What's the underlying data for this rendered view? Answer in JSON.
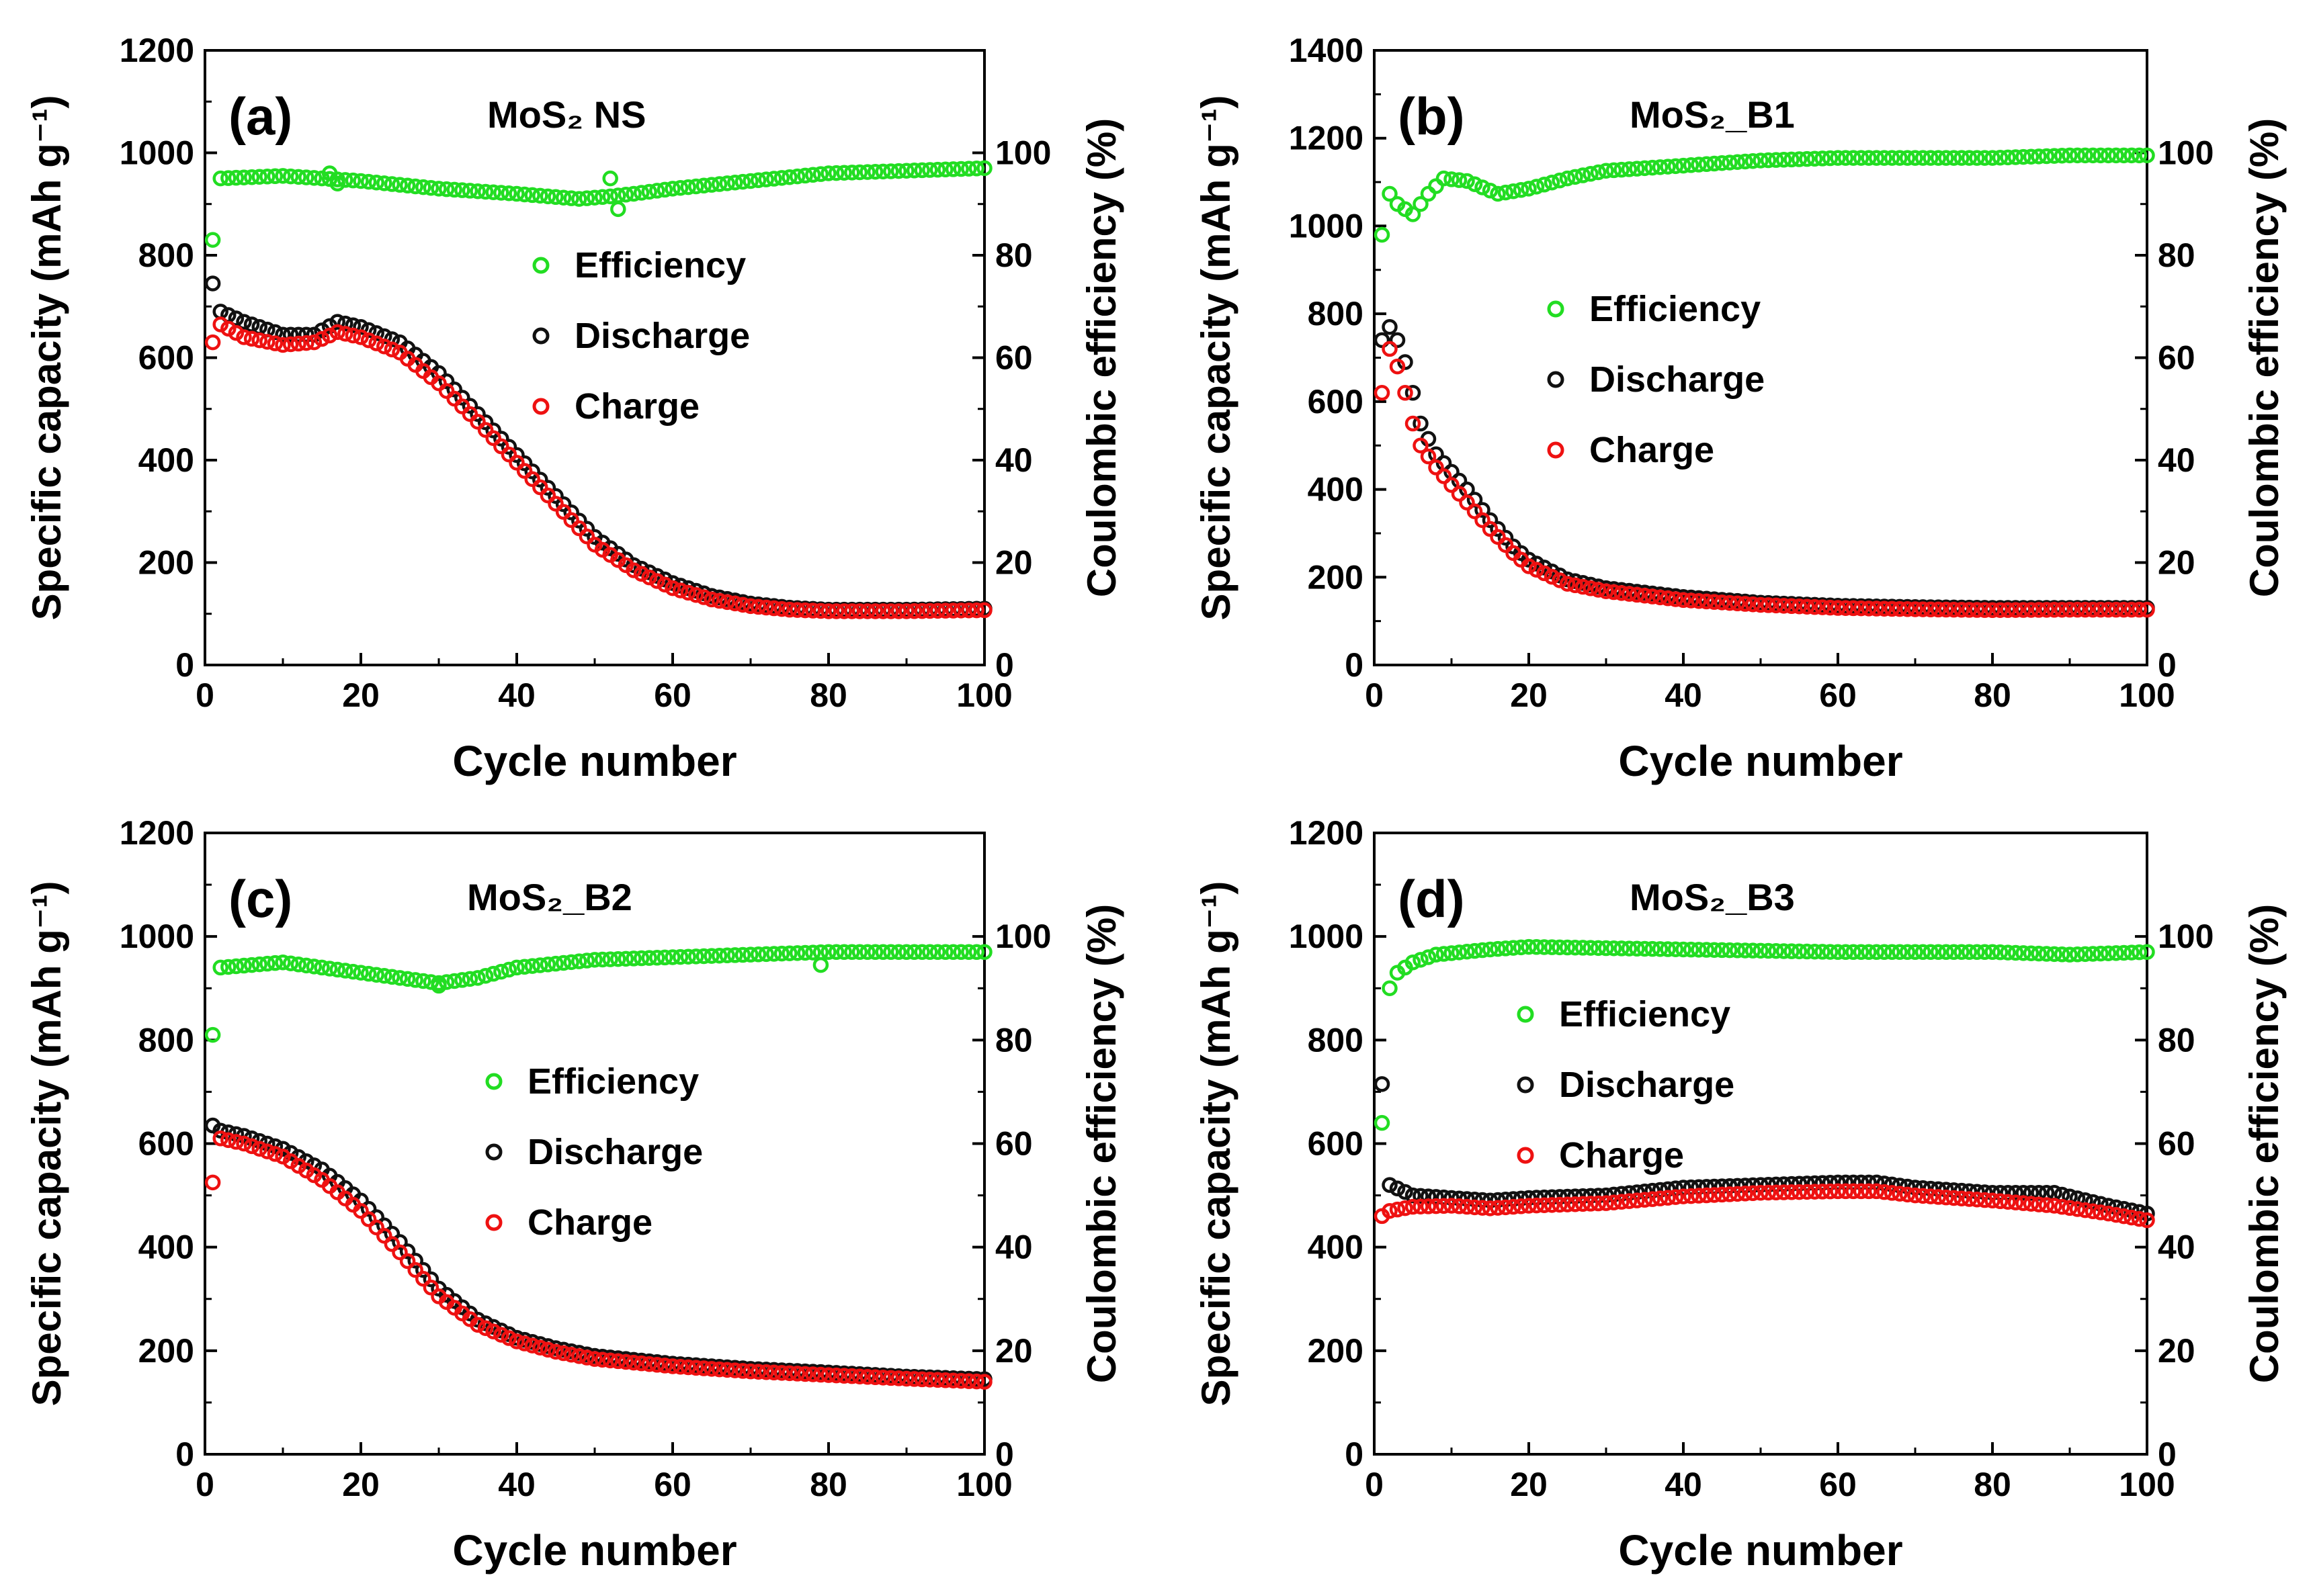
{
  "chart_data": [
    {
      "type": "scatter",
      "panel_label": "(a)",
      "title": "MoS₂ NS",
      "xlabel": "Cycle number",
      "ylabel_left": "Specific capacity (mAh g⁻¹)",
      "ylabel_right": "Coulombic efficiency (%)",
      "xlim": [
        0,
        100
      ],
      "ylim_left": [
        0,
        1200
      ],
      "ylim_right": [
        0,
        120
      ],
      "xticks": [
        "0",
        "20",
        "40",
        "60",
        "80",
        "100"
      ],
      "yticks_left": [
        "0",
        "200",
        "400",
        "600",
        "800",
        "1000",
        "1200"
      ],
      "yticks_right": [
        "0",
        "20",
        "40",
        "60",
        "80",
        "100"
      ],
      "legend": [
        "Efficiency",
        "Discharge",
        "Charge"
      ],
      "colors": {
        "efficiency": "#22dd22",
        "discharge": "#111111",
        "charge": "#ee1111"
      },
      "discharge_key": [
        [
          1,
          745
        ],
        [
          2,
          690
        ],
        [
          5,
          670
        ],
        [
          10,
          645
        ],
        [
          14,
          645
        ],
        [
          17,
          670
        ],
        [
          20,
          660
        ],
        [
          25,
          630
        ],
        [
          30,
          570
        ],
        [
          35,
          490
        ],
        [
          40,
          410
        ],
        [
          45,
          330
        ],
        [
          50,
          250
        ],
        [
          55,
          195
        ],
        [
          60,
          160
        ],
        [
          65,
          135
        ],
        [
          70,
          120
        ],
        [
          75,
          112
        ],
        [
          80,
          108
        ],
        [
          90,
          108
        ],
        [
          100,
          110
        ]
      ],
      "charge_key": [
        [
          1,
          630
        ],
        [
          2,
          665
        ],
        [
          5,
          640
        ],
        [
          10,
          625
        ],
        [
          14,
          630
        ],
        [
          17,
          650
        ],
        [
          20,
          640
        ],
        [
          25,
          610
        ],
        [
          30,
          550
        ],
        [
          35,
          475
        ],
        [
          40,
          395
        ],
        [
          45,
          315
        ],
        [
          50,
          235
        ],
        [
          55,
          185
        ],
        [
          60,
          150
        ],
        [
          65,
          128
        ],
        [
          70,
          115
        ],
        [
          75,
          108
        ],
        [
          80,
          105
        ],
        [
          90,
          105
        ],
        [
          100,
          107
        ]
      ],
      "efficiency_key": [
        [
          1,
          83
        ],
        [
          2,
          95
        ],
        [
          10,
          95.5
        ],
        [
          20,
          94.5
        ],
        [
          30,
          93
        ],
        [
          40,
          92
        ],
        [
          48,
          91
        ],
        [
          52,
          91.5
        ],
        [
          55,
          92
        ],
        [
          60,
          93
        ],
        [
          70,
          94.5
        ],
        [
          80,
          96
        ],
        [
          90,
          96.5
        ],
        [
          100,
          97
        ]
      ],
      "efficiency_outliers": [
        [
          52,
          95
        ],
        [
          53,
          89
        ],
        [
          16,
          96
        ],
        [
          17,
          94
        ]
      ]
    },
    {
      "type": "scatter",
      "panel_label": "(b)",
      "title": "MoS₂_B1",
      "xlabel": "Cycle number",
      "ylabel_left": "Specific capacity (mAh g⁻¹)",
      "ylabel_right": "Coulombic efficiency (%)",
      "xlim": [
        0,
        100
      ],
      "ylim_left": [
        0,
        1400
      ],
      "ylim_right": [
        0,
        120
      ],
      "xticks": [
        "0",
        "20",
        "40",
        "60",
        "80",
        "100"
      ],
      "yticks_left": [
        "0",
        "200",
        "400",
        "600",
        "800",
        "1000",
        "1200",
        "1400"
      ],
      "yticks_right": [
        "0",
        "20",
        "40",
        "60",
        "80",
        "100"
      ],
      "legend": [
        "Efficiency",
        "Discharge",
        "Charge"
      ],
      "colors": {
        "efficiency": "#22dd22",
        "discharge": "#111111",
        "charge": "#ee1111"
      },
      "discharge_key": [
        [
          1,
          740
        ],
        [
          2,
          770
        ],
        [
          3,
          740
        ],
        [
          4,
          690
        ],
        [
          5,
          620
        ],
        [
          6,
          550
        ],
        [
          8,
          480
        ],
        [
          10,
          440
        ],
        [
          12,
          400
        ],
        [
          15,
          330
        ],
        [
          18,
          270
        ],
        [
          20,
          240
        ],
        [
          25,
          195
        ],
        [
          30,
          175
        ],
        [
          40,
          155
        ],
        [
          50,
          142
        ],
        [
          60,
          135
        ],
        [
          70,
          132
        ],
        [
          80,
          130
        ],
        [
          90,
          130
        ],
        [
          100,
          130
        ]
      ],
      "charge_key": [
        [
          1,
          620
        ],
        [
          2,
          720
        ],
        [
          3,
          680
        ],
        [
          4,
          620
        ],
        [
          5,
          550
        ],
        [
          6,
          500
        ],
        [
          8,
          450
        ],
        [
          10,
          410
        ],
        [
          12,
          370
        ],
        [
          15,
          310
        ],
        [
          18,
          255
        ],
        [
          20,
          225
        ],
        [
          25,
          185
        ],
        [
          30,
          168
        ],
        [
          40,
          148
        ],
        [
          50,
          137
        ],
        [
          60,
          130
        ],
        [
          70,
          127
        ],
        [
          80,
          125
        ],
        [
          90,
          126
        ],
        [
          100,
          126
        ]
      ],
      "efficiency_key": [
        [
          1,
          84
        ],
        [
          2,
          92
        ],
        [
          3,
          90
        ],
        [
          5,
          88
        ],
        [
          7,
          92
        ],
        [
          9,
          95
        ],
        [
          12,
          94.5
        ],
        [
          16,
          92
        ],
        [
          20,
          93
        ],
        [
          25,
          95
        ],
        [
          30,
          96.5
        ],
        [
          40,
          97.5
        ],
        [
          50,
          98.5
        ],
        [
          60,
          99
        ],
        [
          70,
          99
        ],
        [
          80,
          99
        ],
        [
          90,
          99.5
        ],
        [
          100,
          99.5
        ]
      ],
      "efficiency_outliers": []
    },
    {
      "type": "scatter",
      "panel_label": "(c)",
      "title": "MoS₂_B2",
      "xlabel": "Cycle number",
      "ylabel_left": "Specific capacity (mAh g⁻¹)",
      "ylabel_right": "Coulombic efficiency (%)",
      "xlim": [
        0,
        100
      ],
      "ylim_left": [
        0,
        1200
      ],
      "ylim_right": [
        0,
        120
      ],
      "xticks": [
        "0",
        "20",
        "40",
        "60",
        "80",
        "100"
      ],
      "yticks_left": [
        "0",
        "200",
        "400",
        "600",
        "800",
        "1000",
        "1200"
      ],
      "yticks_right": [
        "0",
        "20",
        "40",
        "60",
        "80",
        "100"
      ],
      "legend": [
        "Efficiency",
        "Discharge",
        "Charge"
      ],
      "colors": {
        "efficiency": "#22dd22",
        "discharge": "#111111",
        "charge": "#ee1111"
      },
      "discharge_key": [
        [
          1,
          635
        ],
        [
          2,
          625
        ],
        [
          5,
          615
        ],
        [
          10,
          590
        ],
        [
          15,
          550
        ],
        [
          20,
          490
        ],
        [
          25,
          410
        ],
        [
          30,
          320
        ],
        [
          35,
          260
        ],
        [
          40,
          225
        ],
        [
          45,
          205
        ],
        [
          50,
          190
        ],
        [
          60,
          175
        ],
        [
          70,
          165
        ],
        [
          80,
          158
        ],
        [
          90,
          150
        ],
        [
          100,
          145
        ]
      ],
      "charge_key": [
        [
          1,
          525
        ],
        [
          2,
          610
        ],
        [
          5,
          600
        ],
        [
          10,
          575
        ],
        [
          15,
          530
        ],
        [
          20,
          470
        ],
        [
          25,
          390
        ],
        [
          30,
          305
        ],
        [
          35,
          250
        ],
        [
          40,
          218
        ],
        [
          45,
          198
        ],
        [
          50,
          184
        ],
        [
          60,
          170
        ],
        [
          70,
          160
        ],
        [
          80,
          153
        ],
        [
          90,
          146
        ],
        [
          100,
          140
        ]
      ],
      "efficiency_key": [
        [
          1,
          81
        ],
        [
          2,
          94
        ],
        [
          10,
          95
        ],
        [
          20,
          93
        ],
        [
          25,
          92
        ],
        [
          30,
          91
        ],
        [
          35,
          92
        ],
        [
          40,
          94
        ],
        [
          50,
          95.5
        ],
        [
          60,
          96
        ],
        [
          70,
          96.5
        ],
        [
          80,
          97
        ],
        [
          90,
          97
        ],
        [
          100,
          97
        ]
      ],
      "efficiency_outliers": [
        [
          79,
          94.5
        ],
        [
          30,
          90.5
        ]
      ]
    },
    {
      "type": "scatter",
      "panel_label": "(d)",
      "title": "MoS₂_B3",
      "xlabel": "Cycle number",
      "ylabel_left": "Specific capacity (mAh g⁻¹)",
      "ylabel_right": "Coulombic efficiency (%)",
      "xlim": [
        0,
        100
      ],
      "ylim_left": [
        0,
        1200
      ],
      "ylim_right": [
        0,
        120
      ],
      "xticks": [
        "0",
        "20",
        "40",
        "60",
        "80",
        "100"
      ],
      "yticks_left": [
        "0",
        "200",
        "400",
        "600",
        "800",
        "1000",
        "1200"
      ],
      "yticks_right": [
        "0",
        "20",
        "40",
        "60",
        "80",
        "100"
      ],
      "legend": [
        "Efficiency",
        "Discharge",
        "Charge"
      ],
      "colors": {
        "efficiency": "#22dd22",
        "discharge": "#111111",
        "charge": "#ee1111"
      },
      "discharge_key": [
        [
          1,
          715
        ],
        [
          2,
          520
        ],
        [
          5,
          500
        ],
        [
          10,
          495
        ],
        [
          15,
          490
        ],
        [
          20,
          495
        ],
        [
          30,
          500
        ],
        [
          40,
          515
        ],
        [
          50,
          520
        ],
        [
          60,
          525
        ],
        [
          65,
          525
        ],
        [
          70,
          515
        ],
        [
          80,
          505
        ],
        [
          88,
          505
        ],
        [
          95,
          480
        ],
        [
          100,
          465
        ]
      ],
      "charge_key": [
        [
          1,
          460
        ],
        [
          2,
          470
        ],
        [
          5,
          478
        ],
        [
          10,
          480
        ],
        [
          15,
          475
        ],
        [
          20,
          480
        ],
        [
          30,
          485
        ],
        [
          40,
          498
        ],
        [
          50,
          505
        ],
        [
          60,
          508
        ],
        [
          65,
          508
        ],
        [
          70,
          500
        ],
        [
          80,
          490
        ],
        [
          88,
          480
        ],
        [
          95,
          465
        ],
        [
          100,
          452
        ]
      ],
      "efficiency_key": [
        [
          1,
          64
        ],
        [
          2,
          90
        ],
        [
          3,
          93
        ],
        [
          5,
          95
        ],
        [
          8,
          96.5
        ],
        [
          15,
          97.5
        ],
        [
          20,
          98
        ],
        [
          40,
          97.5
        ],
        [
          60,
          97
        ],
        [
          80,
          97
        ],
        [
          90,
          96.5
        ],
        [
          100,
          97
        ]
      ],
      "efficiency_outliers": []
    }
  ]
}
